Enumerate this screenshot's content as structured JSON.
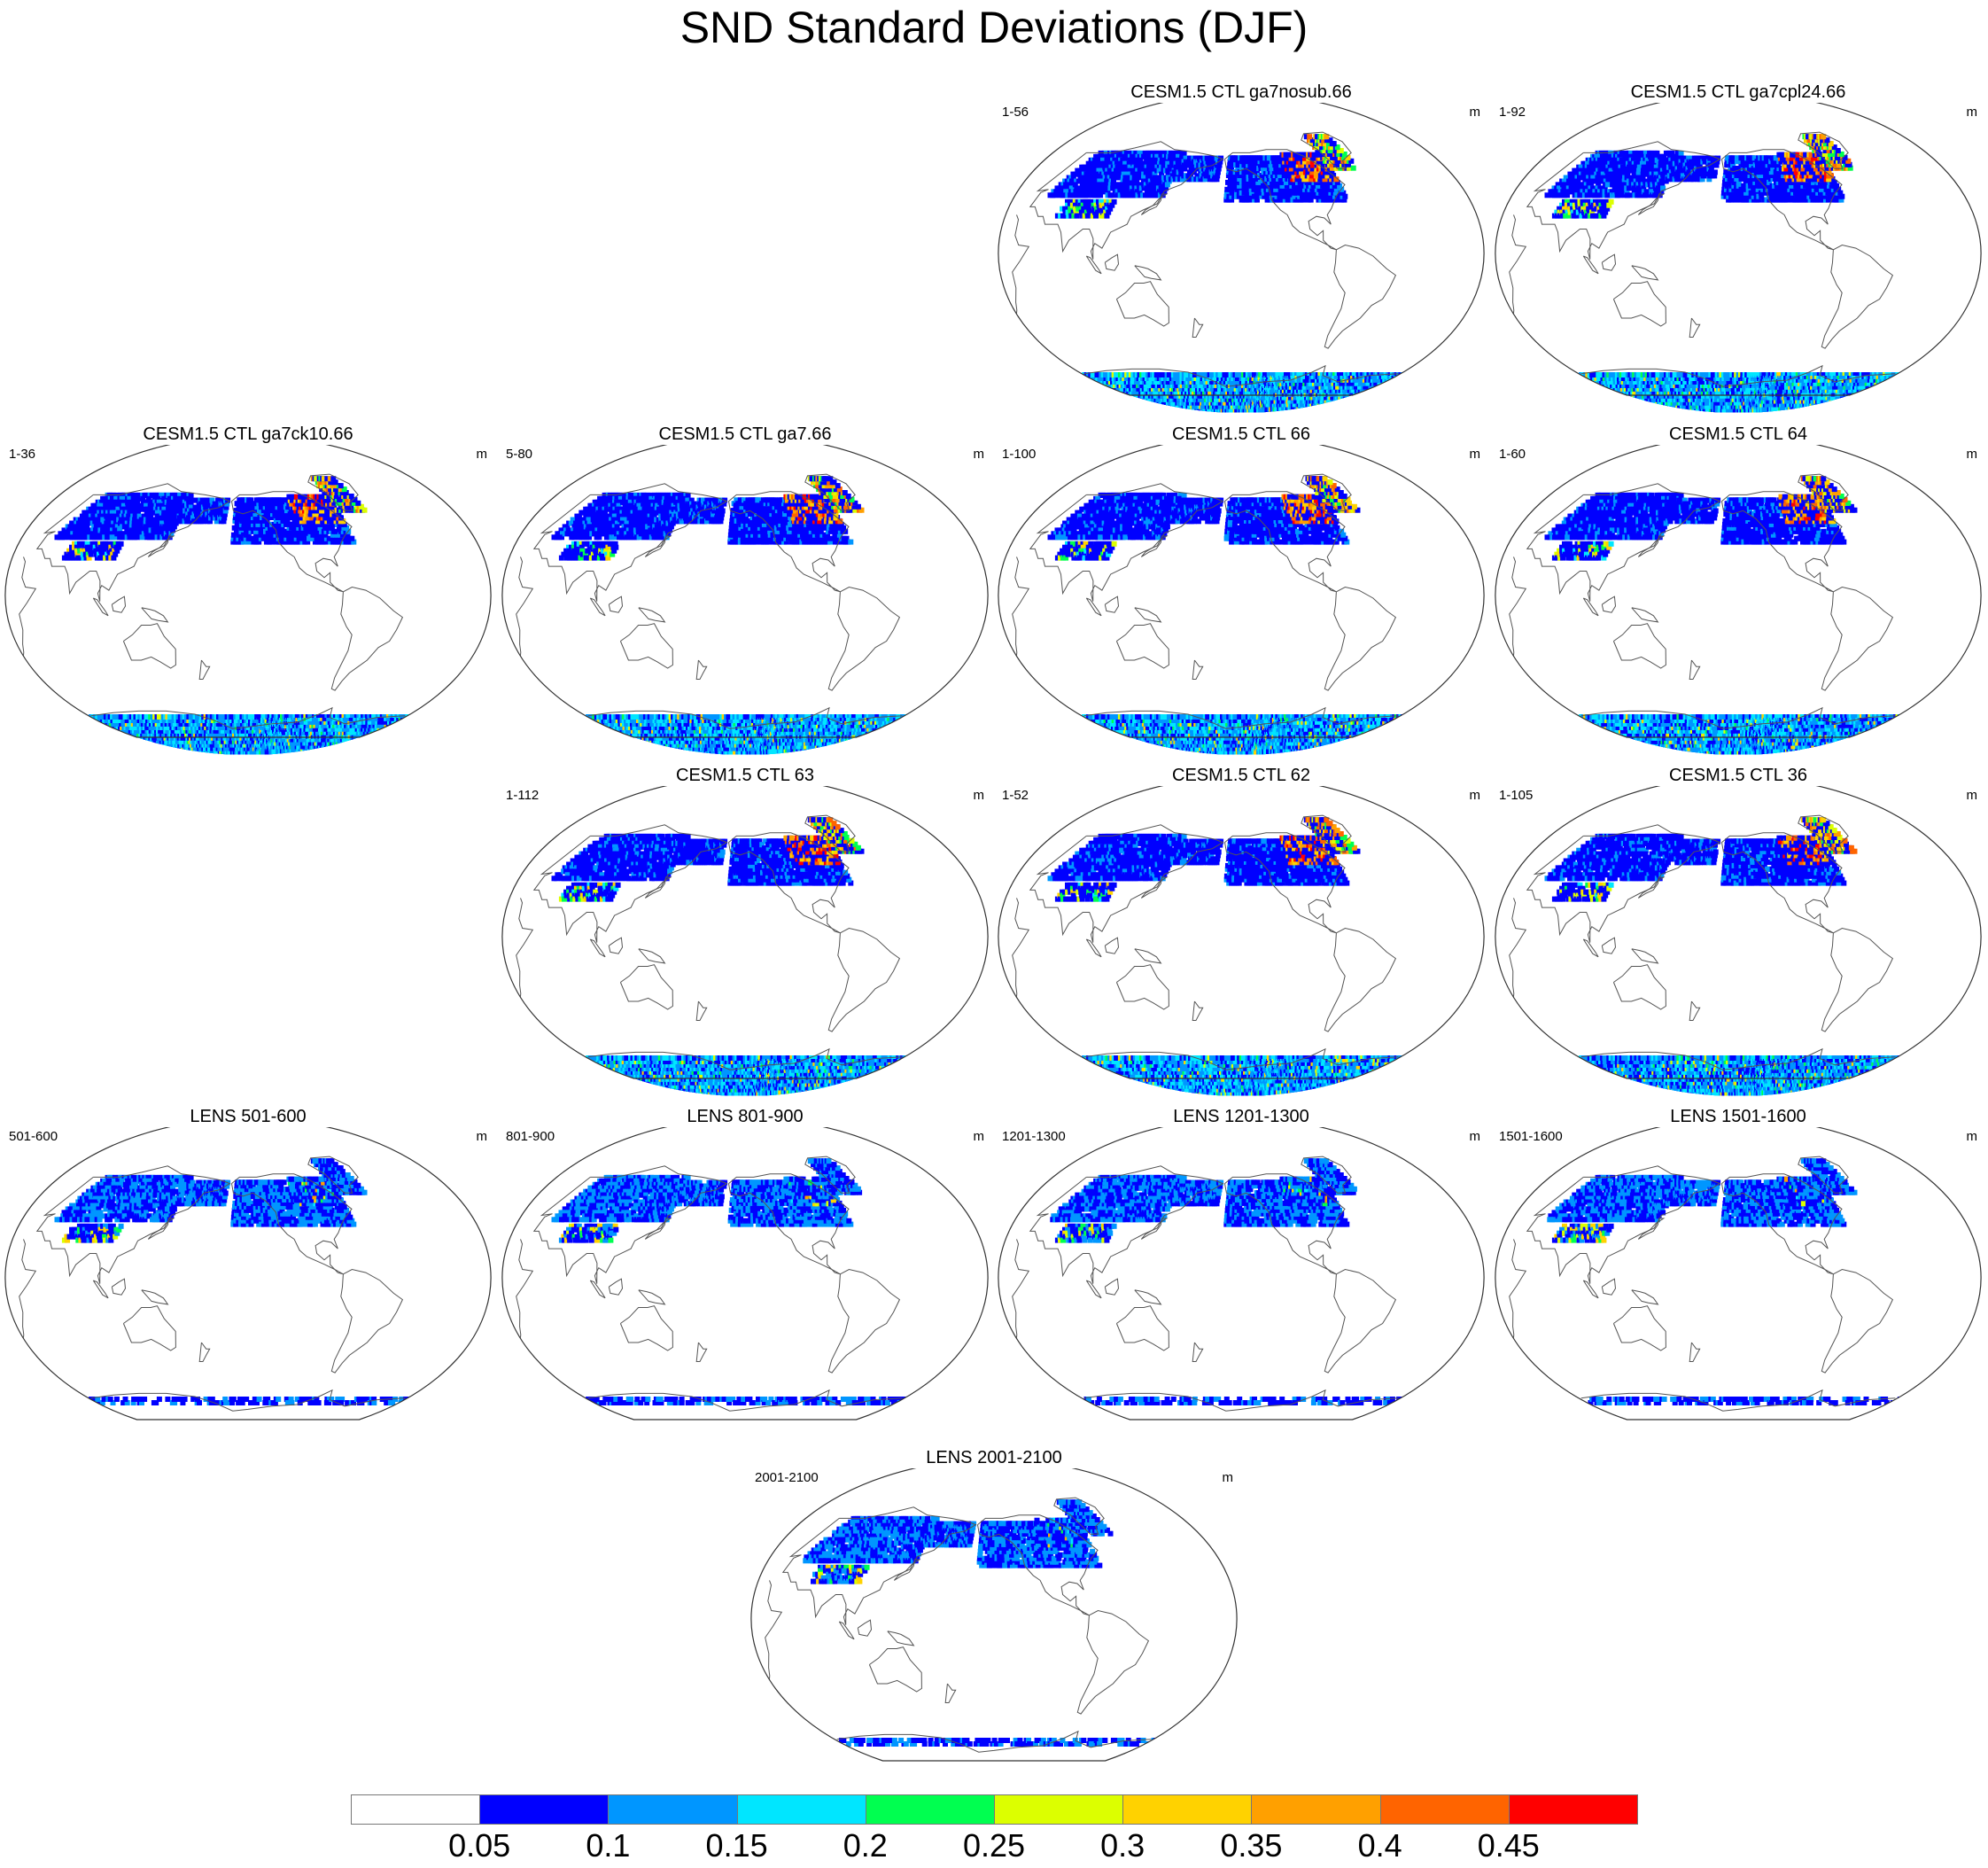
{
  "title": "SND Standard Deviations (DJF)",
  "unit": "m",
  "colorbar": {
    "colors": [
      "#ffffff",
      "#0000ff",
      "#0096ff",
      "#00e6ff",
      "#00ff50",
      "#dcff00",
      "#ffd200",
      "#ffa000",
      "#ff6400",
      "#ff0000"
    ],
    "labels": [
      "0.05",
      "0.1",
      "0.15",
      "0.2",
      "0.25",
      "0.3",
      "0.35",
      "0.4",
      "0.45"
    ]
  },
  "panels": [
    {
      "title": "CESM1.5 CTL ga7nosub.66",
      "range": "1-56",
      "row": 0,
      "col": 2,
      "intensity": 0.8,
      "type": "cesm"
    },
    {
      "title": "CESM1.5 CTL ga7cpl24.66",
      "range": "1-92",
      "row": 0,
      "col": 3,
      "intensity": 0.9,
      "type": "cesm"
    },
    {
      "title": "CESM1.5 CTL ga7ck10.66",
      "range": "1-36",
      "row": 1,
      "col": 0,
      "intensity": 0.75,
      "type": "cesm"
    },
    {
      "title": "CESM1.5 CTL ga7.66",
      "range": "5-80",
      "row": 1,
      "col": 1,
      "intensity": 0.85,
      "type": "cesm"
    },
    {
      "title": "CESM1.5 CTL 66",
      "range": "1-100",
      "row": 1,
      "col": 2,
      "intensity": 1.0,
      "type": "cesm"
    },
    {
      "title": "CESM1.5 CTL 64",
      "range": "1-60",
      "row": 1,
      "col": 3,
      "intensity": 0.8,
      "type": "cesm"
    },
    {
      "title": "CESM1.5 CTL 63",
      "range": "1-112",
      "row": 2,
      "col": 1,
      "intensity": 0.85,
      "type": "cesm"
    },
    {
      "title": "CESM1.5 CTL 62",
      "range": "1-52",
      "row": 2,
      "col": 2,
      "intensity": 0.85,
      "type": "cesm"
    },
    {
      "title": "CESM1.5 CTL 36",
      "range": "1-105",
      "row": 2,
      "col": 3,
      "intensity": 0.7,
      "type": "cesm"
    },
    {
      "title": "LENS 501-600",
      "range": "501-600",
      "row": 3,
      "col": 0,
      "intensity": 0.5,
      "type": "lens"
    },
    {
      "title": "LENS 801-900",
      "range": "801-900",
      "row": 3,
      "col": 1,
      "intensity": 0.5,
      "type": "lens"
    },
    {
      "title": "LENS 1201-1300",
      "range": "1201-1300",
      "row": 3,
      "col": 2,
      "intensity": 0.5,
      "type": "lens"
    },
    {
      "title": "LENS 1501-1600",
      "range": "1501-1600",
      "row": 3,
      "col": 3,
      "intensity": 0.5,
      "type": "lens"
    },
    {
      "title": "LENS 2001-2100",
      "range": "2001-2100",
      "row": 4,
      "col": 1.5,
      "intensity": 0.55,
      "type": "lens"
    }
  ]
}
